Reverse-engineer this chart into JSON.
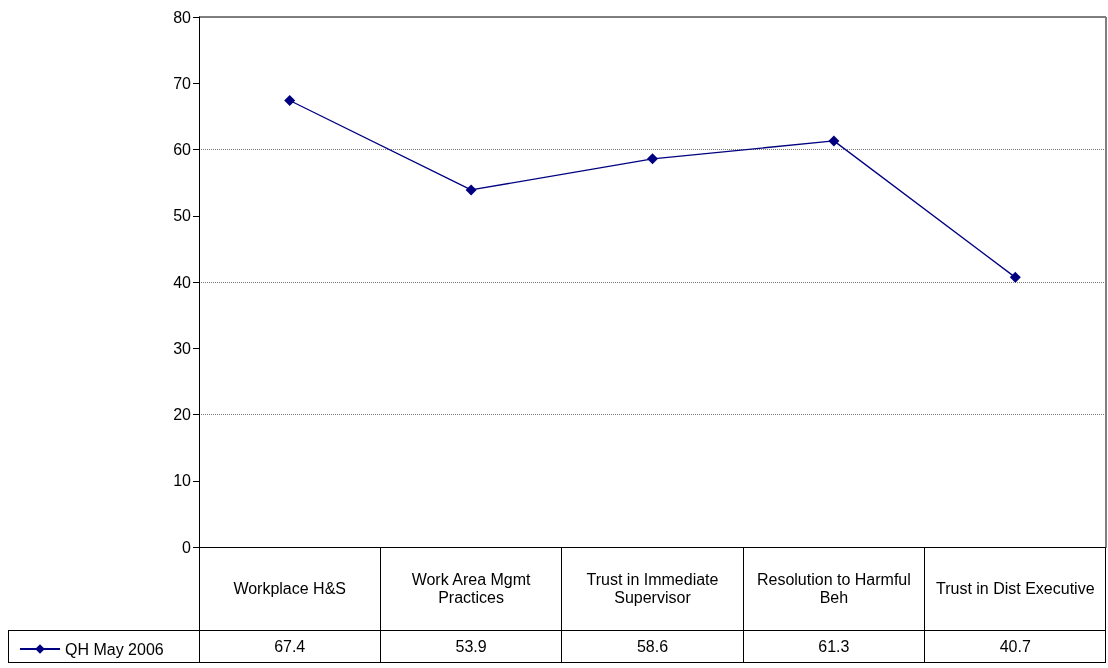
{
  "chart_data": {
    "type": "line",
    "categories": [
      "Workplace H&S",
      "Work Area Mgmt Practices",
      "Trust in Immediate Supervisor",
      "Resolution to Harmful Beh",
      "Trust in Dist Executive"
    ],
    "series": [
      {
        "name": "QH May 2006",
        "color": "#000080",
        "values": [
          67.4,
          53.9,
          58.6,
          61.3,
          40.7
        ]
      }
    ],
    "ylim": [
      0,
      80
    ],
    "yticks": [
      0,
      10,
      20,
      30,
      40,
      50,
      60,
      70,
      80
    ],
    "grid": "y",
    "legend": "bottom left",
    "marker": "diamond",
    "line_style": "solid",
    "data_labels": true
  }
}
